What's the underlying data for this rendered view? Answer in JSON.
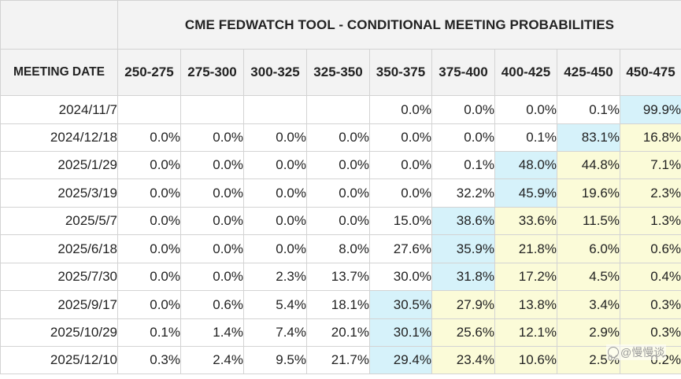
{
  "chart_data": {
    "type": "table",
    "title": "CME FEDWATCH TOOL - CONDITIONAL MEETING PROBABILITIES",
    "row_header_label": "MEETING DATE",
    "columns": [
      "250-275",
      "275-300",
      "300-325",
      "325-350",
      "350-375",
      "375-400",
      "400-425",
      "425-450",
      "450-475"
    ],
    "rows": [
      {
        "date": "2024/11/7",
        "values": [
          "",
          "",
          "",
          "",
          "0.0%",
          "0.0%",
          "0.0%",
          "0.1%",
          "99.9%"
        ]
      },
      {
        "date": "2024/12/18",
        "values": [
          "0.0%",
          "0.0%",
          "0.0%",
          "0.0%",
          "0.0%",
          "0.0%",
          "0.1%",
          "83.1%",
          "16.8%"
        ]
      },
      {
        "date": "2025/1/29",
        "values": [
          "0.0%",
          "0.0%",
          "0.0%",
          "0.0%",
          "0.0%",
          "0.1%",
          "48.0%",
          "44.8%",
          "7.1%"
        ]
      },
      {
        "date": "2025/3/19",
        "values": [
          "0.0%",
          "0.0%",
          "0.0%",
          "0.0%",
          "0.0%",
          "32.2%",
          "45.9%",
          "19.6%",
          "2.3%"
        ]
      },
      {
        "date": "2025/5/7",
        "values": [
          "0.0%",
          "0.0%",
          "0.0%",
          "0.0%",
          "15.0%",
          "38.6%",
          "33.6%",
          "11.5%",
          "1.3%"
        ]
      },
      {
        "date": "2025/6/18",
        "values": [
          "0.0%",
          "0.0%",
          "0.0%",
          "8.0%",
          "27.6%",
          "35.9%",
          "21.8%",
          "6.0%",
          "0.6%"
        ]
      },
      {
        "date": "2025/7/30",
        "values": [
          "0.0%",
          "0.0%",
          "2.3%",
          "13.7%",
          "30.0%",
          "31.8%",
          "17.2%",
          "4.5%",
          "0.4%"
        ]
      },
      {
        "date": "2025/9/17",
        "values": [
          "0.0%",
          "0.6%",
          "5.4%",
          "18.1%",
          "30.5%",
          "27.9%",
          "13.8%",
          "3.4%",
          "0.3%"
        ]
      },
      {
        "date": "2025/10/29",
        "values": [
          "0.1%",
          "1.4%",
          "7.4%",
          "20.1%",
          "30.1%",
          "25.6%",
          "12.1%",
          "2.9%",
          "0.3%"
        ]
      },
      {
        "date": "2025/12/10",
        "values": [
          "0.3%",
          "2.4%",
          "9.5%",
          "21.7%",
          "29.4%",
          "23.4%",
          "10.6%",
          "2.5%",
          "0.2%"
        ]
      }
    ],
    "highlight_colors": {
      "max": "#d6f2fa",
      "right_of_max": "#fbfbd8"
    }
  },
  "watermark": {
    "text": "@慢慢谈"
  }
}
